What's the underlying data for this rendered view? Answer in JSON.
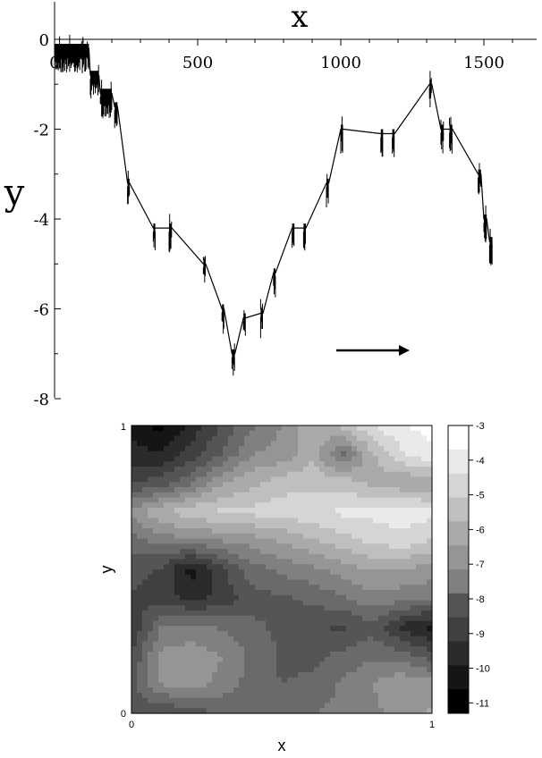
{
  "chart_data": [
    {
      "type": "line",
      "xlabel": "x",
      "ylabel": "y",
      "xlim": [
        0,
        1700
      ],
      "ylim": [
        -8,
        0
      ],
      "x_ticks": [
        0,
        500,
        1000,
        1500
      ],
      "x_tick_labels": [
        "0",
        "500",
        "1000",
        "1500"
      ],
      "y_ticks": [
        0,
        -2,
        -4,
        -6,
        -8
      ],
      "y_tick_labels": [
        "0",
        "-2",
        "-4",
        "-6",
        "-8"
      ],
      "x_axis_position": "top",
      "annotation": "rightward arrow",
      "grid": false,
      "series": [
        {
          "x": [
            0,
            120,
            125,
            155,
            160,
            200,
            210,
            220,
            255,
            262,
            345,
            352,
            400,
            410,
            520,
            528,
            585,
            592,
            620,
            630,
            660,
            668,
            720,
            728,
            765,
            772,
            830,
            838,
            870,
            878,
            950,
            958,
            1000,
            1008,
            1140,
            1148,
            1180,
            1188,
            1310,
            1318,
            1350,
            1360,
            1380,
            1390,
            1480,
            1490,
            1500,
            1510,
            1520,
            1530
          ],
          "y": [
            -0.2,
            -0.2,
            -0.8,
            -0.8,
            -1.2,
            -1.2,
            -1.5,
            -1.5,
            -3.2,
            -3.2,
            -4.2,
            -4.2,
            -4.2,
            -4.2,
            -5.0,
            -5.0,
            -6.0,
            -6.0,
            -7.0,
            -7.0,
            -6.2,
            -6.2,
            -6.1,
            -6.1,
            -5.2,
            -5.2,
            -4.2,
            -4.2,
            -4.2,
            -4.2,
            -3.2,
            -3.2,
            -2.0,
            -2.0,
            -2.1,
            -2.1,
            -2.1,
            -2.1,
            -1.0,
            -1.0,
            -2.0,
            -2.0,
            -2.0,
            -2.0,
            -3.0,
            -3.0,
            -4.0,
            -4.0,
            -4.5,
            -4.5
          ]
        }
      ]
    },
    {
      "type": "heatmap",
      "xlabel": "x",
      "ylabel": "y",
      "xlim": [
        0,
        1
      ],
      "ylim": [
        0,
        1
      ],
      "x_tick_labels": [
        "0",
        "1"
      ],
      "y_tick_labels": [
        "0",
        "1"
      ],
      "colorbar": {
        "range": [
          -11.3,
          -3
        ],
        "ticks": [
          -3,
          -4,
          -5,
          -6,
          -7,
          -8,
          -9,
          -10,
          -11
        ],
        "tick_labels": [
          "-3",
          "-4",
          "-5",
          "-6",
          "-7",
          "-8",
          "-9",
          "-10",
          "-11"
        ],
        "colormap": "grayscale (black = low, white = high)"
      },
      "grid_values": [
        [
          -8.6,
          -8.9,
          -8.5,
          -8.2,
          -8.0,
          -7.8,
          -7.5,
          -7.3,
          -7.0,
          -6.5,
          -6.0
        ],
        [
          -8.5,
          -6.8,
          -6.5,
          -7.0,
          -7.8,
          -8.2,
          -8.0,
          -7.4,
          -6.8,
          -6.2,
          -6.5
        ],
        [
          -8.8,
          -6.6,
          -6.4,
          -6.8,
          -7.6,
          -8.3,
          -8.4,
          -8.0,
          -7.6,
          -7.8,
          -8.6
        ],
        [
          -9.5,
          -7.5,
          -7.3,
          -7.6,
          -8.0,
          -8.4,
          -8.8,
          -9.0,
          -8.5,
          -9.8,
          -10.5
        ],
        [
          -9.0,
          -9.2,
          -9.8,
          -9.4,
          -8.5,
          -8.3,
          -8.0,
          -7.6,
          -7.0,
          -7.2,
          -7.4
        ],
        [
          -8.5,
          -9.0,
          -10.6,
          -9.0,
          -7.8,
          -7.3,
          -7.0,
          -6.5,
          -6.0,
          -6.2,
          -6.4
        ],
        [
          -7.8,
          -7.2,
          -7.0,
          -6.8,
          -6.5,
          -6.0,
          -5.5,
          -5.0,
          -4.6,
          -4.2,
          -4.8
        ],
        [
          -6.5,
          -5.5,
          -4.9,
          -4.6,
          -4.5,
          -4.4,
          -4.2,
          -3.9,
          -3.8,
          -3.7,
          -3.8
        ],
        [
          -9.0,
          -8.5,
          -7.6,
          -6.2,
          -5.6,
          -5.0,
          -4.9,
          -5.0,
          -5.6,
          -6.0,
          -6.2
        ],
        [
          -10.0,
          -10.2,
          -9.2,
          -8.2,
          -6.8,
          -6.6,
          -5.6,
          -7.8,
          -5.6,
          -4.2,
          -3.4
        ],
        [
          -10.5,
          -11.2,
          -10.0,
          -8.8,
          -7.6,
          -6.8,
          -5.6,
          -5.2,
          -4.0,
          -3.3,
          -3.2
        ]
      ]
    }
  ]
}
